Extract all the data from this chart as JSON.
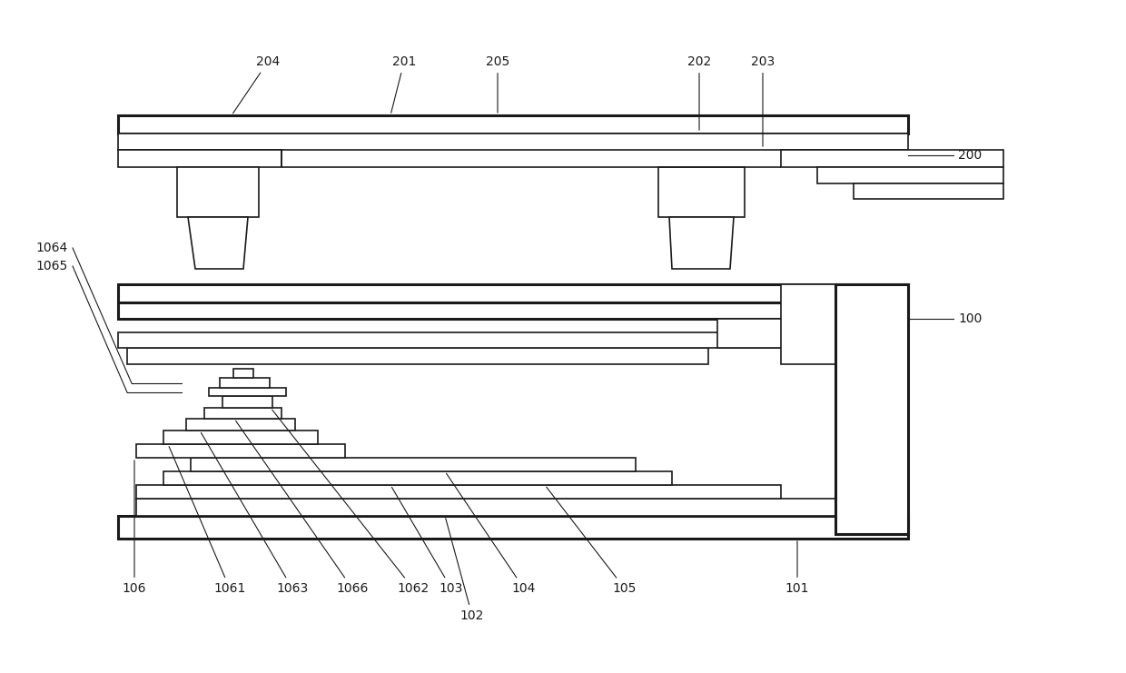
{
  "bg_color": "#ffffff",
  "lc": "#1a1a1a",
  "lw_thin": 1.2,
  "lw_thick": 2.2,
  "fig_w": 12.4,
  "fig_h": 7.41,
  "font_size": 10
}
